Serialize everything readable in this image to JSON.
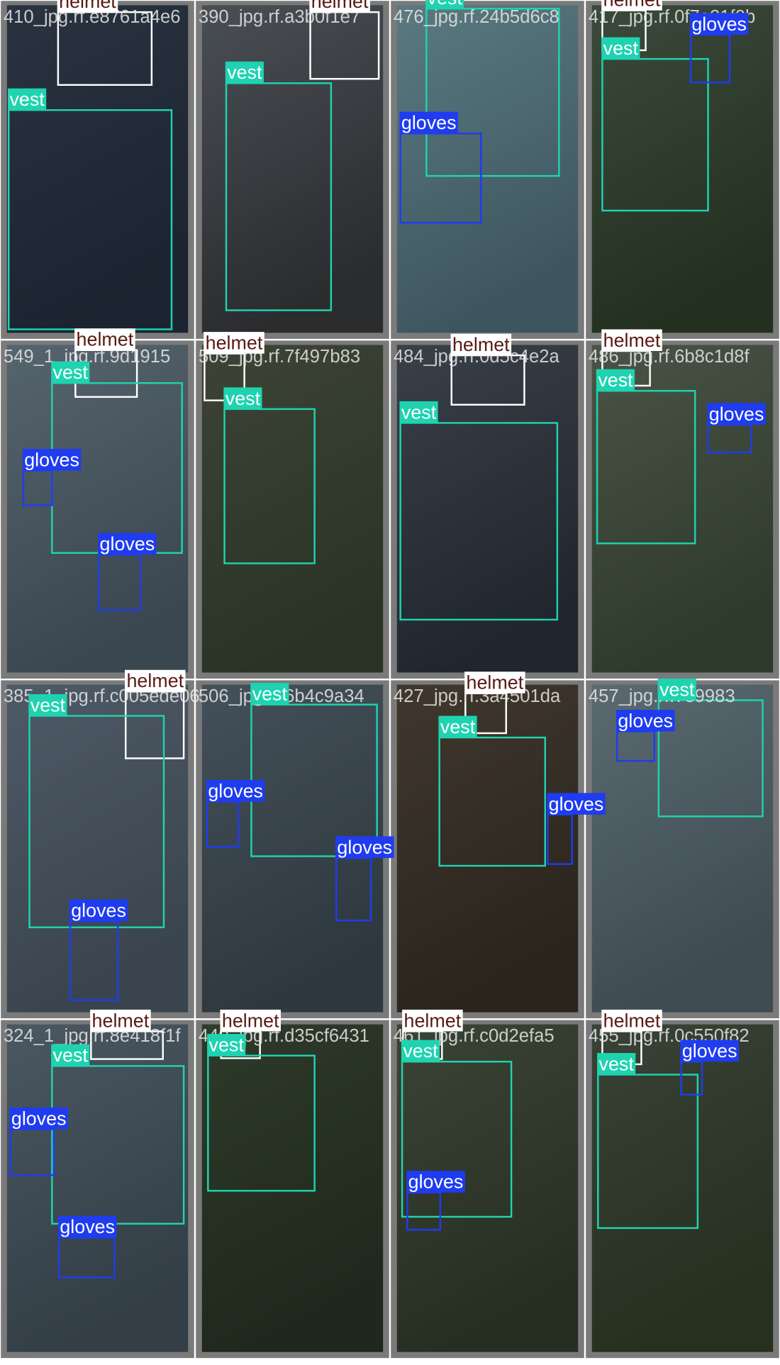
{
  "tiles": [
    {
      "filename": "410_jpg.rf.e8761a4e6",
      "boxes": [
        {
          "label": "helmet"
        },
        {
          "label": "vest"
        }
      ]
    },
    {
      "filename": "390_jpg.rf.a3b0f1e7",
      "boxes": [
        {
          "label": "helmet"
        },
        {
          "label": "vest"
        }
      ]
    },
    {
      "filename": "476_jpg.rf.24b5d6c8",
      "boxes": [
        {
          "label": "vest"
        },
        {
          "label": "gloves"
        }
      ]
    },
    {
      "filename": "417_jpg.rf.0f7e21f0b",
      "boxes": [
        {
          "label": "helmet"
        },
        {
          "label": "vest"
        },
        {
          "label": "gloves"
        }
      ]
    },
    {
      "filename": "549_1_jpg.rf.9d1915",
      "boxes": [
        {
          "label": "helmet"
        },
        {
          "label": "vest"
        },
        {
          "label": "gloves"
        },
        {
          "label": "gloves"
        }
      ]
    },
    {
      "filename": "509_jpg.rf.7f497b83",
      "boxes": [
        {
          "label": "helmet"
        },
        {
          "label": "vest"
        }
      ]
    },
    {
      "filename": "484_jpg.rf.0d5c4e2a",
      "boxes": [
        {
          "label": "helmet"
        },
        {
          "label": "vest"
        }
      ]
    },
    {
      "filename": "486_jpg.rf.6b8c1d8f",
      "boxes": [
        {
          "label": "helmet"
        },
        {
          "label": "vest"
        },
        {
          "label": "gloves"
        }
      ]
    },
    {
      "filename": "385_1_jpg.rf.c005ede06",
      "boxes": [
        {
          "label": "helmet"
        },
        {
          "label": "vest"
        },
        {
          "label": "gloves"
        }
      ]
    },
    {
      "filename": "506_jpg.rf.6b4c9a34",
      "boxes": [
        {
          "label": "vest"
        },
        {
          "label": "gloves"
        },
        {
          "label": "gloves"
        }
      ]
    },
    {
      "filename": "427_jpg.rf.3a4501da",
      "boxes": [
        {
          "label": "helmet"
        },
        {
          "label": "vest"
        },
        {
          "label": "gloves"
        }
      ]
    },
    {
      "filename": "457_jpg.rf.7e9983",
      "boxes": [
        {
          "label": "vest"
        },
        {
          "label": "gloves"
        }
      ]
    },
    {
      "filename": "324_1_jpg.rf.8e418f1f",
      "boxes": [
        {
          "label": "helmet"
        },
        {
          "label": "vest"
        },
        {
          "label": "gloves"
        },
        {
          "label": "gloves"
        }
      ]
    },
    {
      "filename": "440_jpg.rf.d35cf6431",
      "boxes": [
        {
          "label": "helmet"
        },
        {
          "label": "vest"
        }
      ]
    },
    {
      "filename": "461_jpg.rf.c0d2efa5",
      "boxes": [
        {
          "label": "helmet"
        },
        {
          "label": "vest"
        },
        {
          "label": "gloves"
        }
      ]
    },
    {
      "filename": "455_jpg.rf.0c550f82",
      "boxes": [
        {
          "label": "helmet"
        },
        {
          "label": "vest"
        },
        {
          "label": "gloves"
        }
      ]
    }
  ]
}
